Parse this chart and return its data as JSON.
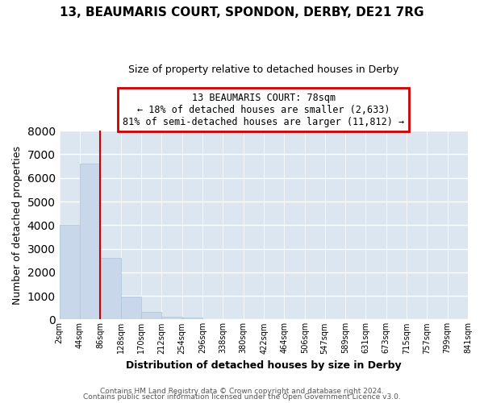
{
  "title": "13, BEAUMARIS COURT, SPONDON, DERBY, DE21 7RG",
  "subtitle": "Size of property relative to detached houses in Derby",
  "xlabel": "Distribution of detached houses by size in Derby",
  "ylabel": "Number of detached properties",
  "bar_color": "#c8d8ea",
  "bar_edge_color": "#b0c8e0",
  "background_color": "#dce6f0",
  "plot_bg_color": "#dce6f0",
  "grid_color": "#ffffff",
  "bin_edges": [
    2,
    44,
    86,
    128,
    170,
    212,
    254,
    296,
    338,
    380,
    422,
    464,
    506,
    547,
    589,
    631,
    673,
    715,
    757,
    799,
    841
  ],
  "bin_labels": [
    "2sqm",
    "44sqm",
    "86sqm",
    "128sqm",
    "170sqm",
    "212sqm",
    "254sqm",
    "296sqm",
    "338sqm",
    "380sqm",
    "422sqm",
    "464sqm",
    "506sqm",
    "547sqm",
    "589sqm",
    "631sqm",
    "673sqm",
    "715sqm",
    "757sqm",
    "799sqm",
    "841sqm"
  ],
  "bar_heights": [
    4000,
    6600,
    2600,
    975,
    325,
    125,
    75,
    0,
    0,
    0,
    0,
    0,
    0,
    0,
    0,
    0,
    0,
    0,
    0,
    0
  ],
  "ylim": [
    0,
    8000
  ],
  "yticks": [
    0,
    1000,
    2000,
    3000,
    4000,
    5000,
    6000,
    7000,
    8000
  ],
  "property_line_x": 86,
  "annotation_title": "13 BEAUMARIS COURT: 78sqm",
  "annotation_line1": "← 18% of detached houses are smaller (2,633)",
  "annotation_line2": "81% of semi-detached houses are larger (11,812) →",
  "annotation_box_color": "#ffffff",
  "annotation_box_edge_color": "#cc0000",
  "property_line_color": "#cc0000",
  "footer1": "Contains HM Land Registry data © Crown copyright and database right 2024.",
  "footer2": "Contains public sector information licensed under the Open Government Licence v3.0."
}
